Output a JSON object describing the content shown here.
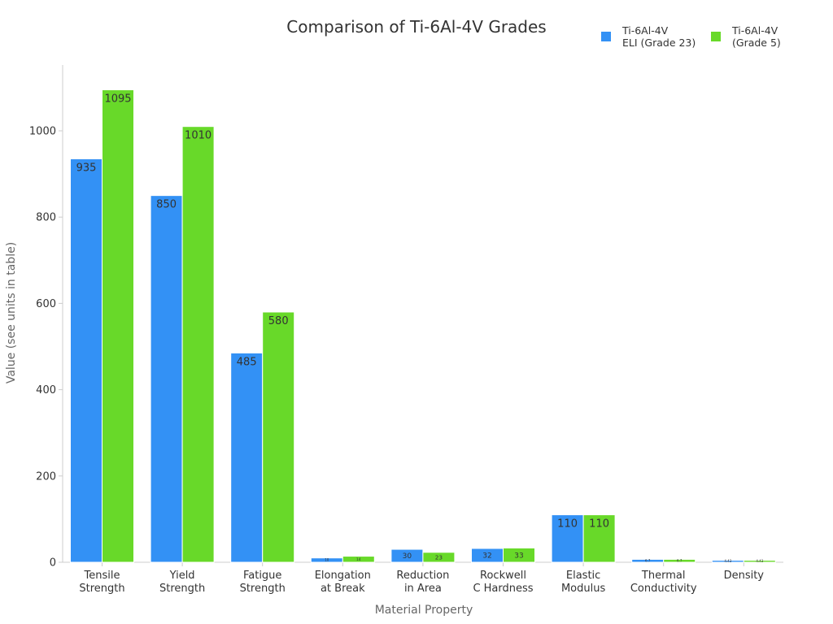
{
  "chart_data": {
    "type": "bar",
    "title": "Comparison of Ti-6Al-4V Grades",
    "xlabel": "Material Property",
    "ylabel": "Value (see units in table)",
    "ylim": [
      0,
      1150
    ],
    "yticks": [
      0,
      200,
      400,
      600,
      800,
      1000
    ],
    "categories": [
      [
        "Tensile",
        "Strength"
      ],
      [
        "Yield",
        "Strength"
      ],
      [
        "Fatigue",
        "Strength"
      ],
      [
        "Elongation",
        "at Break"
      ],
      [
        "Reduction",
        "in Area"
      ],
      [
        "Rockwell",
        "C Hardness"
      ],
      [
        "Elastic",
        "Modulus"
      ],
      [
        "Thermal",
        "Conductivity"
      ],
      [
        "Density"
      ]
    ],
    "series": [
      {
        "name": [
          "Ti-6Al-4V",
          "ELI (Grade 23)"
        ],
        "color": "#3391f5",
        "values": [
          935,
          850,
          485,
          10,
          30,
          32,
          110,
          6.7,
          4.43
        ],
        "labels": [
          "935",
          "850",
          "485",
          "10",
          "30",
          "32",
          "110",
          "6.7",
          "4.43"
        ]
      },
      {
        "name": [
          "Ti-6Al-4V",
          "(Grade 5)"
        ],
        "color": "#68d929",
        "values": [
          1095,
          1010,
          580,
          14,
          23,
          33,
          110,
          6.7,
          4.43
        ],
        "labels": [
          "1095",
          "1010",
          "580",
          "14",
          "23",
          "33",
          "110",
          "6.7",
          "4.43"
        ]
      }
    ],
    "legend_position": "top-right",
    "grid": false
  }
}
